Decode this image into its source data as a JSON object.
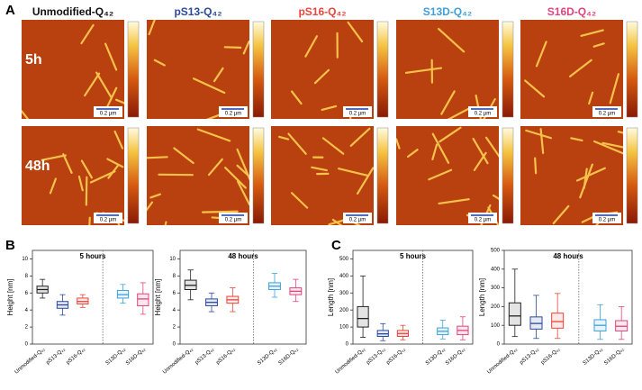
{
  "panel_labels": [
    "A",
    "B",
    "C"
  ],
  "afm": {
    "columns": [
      {
        "label": "Unmodified-Q₄₂",
        "color": "#111111"
      },
      {
        "label": "pS13-Q₄₂",
        "color": "#2b4a9a"
      },
      {
        "label": "pS16-Q₄₂",
        "color": "#e8453c"
      },
      {
        "label": "S13D-Q₄₂",
        "color": "#3ea1d8"
      },
      {
        "label": "S16D-Q₄₂",
        "color": "#e0447a"
      }
    ],
    "rows": [
      "5h",
      "48h"
    ],
    "scale_bar": "0.2 µm"
  },
  "chart_data": [
    {
      "type": "box",
      "title": "5 hours",
      "ylabel": "Height [nm]",
      "categories": [
        "Unmodified-Q₄₂",
        "pS13-Q₄₂",
        "pS16-Q₄₂",
        null,
        "S13D-Q₄₂",
        "S16D-Q₄₂"
      ],
      "colors": [
        "#222222",
        "#2b4a9a",
        "#e8453c",
        null,
        "#3ea1d8",
        "#e0447a"
      ],
      "boxes": [
        {
          "whislo": 5.4,
          "q1": 6.0,
          "median": 6.4,
          "q3": 6.8,
          "whishi": 7.6
        },
        {
          "whislo": 3.4,
          "q1": 4.2,
          "median": 4.6,
          "q3": 5.0,
          "whishi": 5.8
        },
        {
          "whislo": 4.3,
          "q1": 4.7,
          "median": 5.0,
          "q3": 5.4,
          "whishi": 5.8
        },
        null,
        {
          "whislo": 4.8,
          "q1": 5.4,
          "median": 5.8,
          "q3": 6.3,
          "whishi": 7.0
        },
        {
          "whislo": 3.5,
          "q1": 4.5,
          "median": 5.3,
          "q3": 5.9,
          "whishi": 7.2
        }
      ],
      "ylim": [
        0,
        11
      ],
      "yticks": [
        0,
        2,
        4,
        6,
        8,
        10
      ]
    },
    {
      "type": "box",
      "title": "48 hours",
      "ylabel": "Height [nm]",
      "categories": [
        "Unmodified-Q₄₂",
        "pS13-Q₄₂",
        "pS16-Q₄₂",
        null,
        "S13D-Q₄₂",
        "S16D-Q₄₂"
      ],
      "colors": [
        "#222222",
        "#2b4a9a",
        "#e8453c",
        null,
        "#3ea1d8",
        "#e0447a"
      ],
      "boxes": [
        {
          "whislo": 5.2,
          "q1": 6.4,
          "median": 6.9,
          "q3": 7.5,
          "whishi": 8.7
        },
        {
          "whislo": 3.8,
          "q1": 4.5,
          "median": 4.9,
          "q3": 5.3,
          "whishi": 6.0
        },
        {
          "whislo": 3.8,
          "q1": 4.8,
          "median": 5.2,
          "q3": 5.6,
          "whishi": 6.6
        },
        null,
        {
          "whislo": 5.5,
          "q1": 6.4,
          "median": 6.8,
          "q3": 7.2,
          "whishi": 8.3
        },
        {
          "whislo": 5.0,
          "q1": 5.8,
          "median": 6.2,
          "q3": 6.6,
          "whishi": 7.6
        }
      ],
      "ylim": [
        0,
        11
      ],
      "yticks": [
        0,
        2,
        4,
        6,
        8,
        10
      ]
    },
    {
      "type": "box",
      "title": "5 hours",
      "ylabel": "Length [nm]",
      "categories": [
        "Unmodified-Q₄₂",
        "pS13-Q₄₂",
        "pS16-Q₄₂",
        null,
        "S13D-Q₄₂",
        "S16D-Q₄₂"
      ],
      "colors": [
        "#222222",
        "#2b4a9a",
        "#e8453c",
        null,
        "#3ea1d8",
        "#e0447a"
      ],
      "boxes": [
        {
          "whislo": 40,
          "q1": 100,
          "median": 150,
          "q3": 220,
          "whishi": 400
        },
        {
          "whislo": 20,
          "q1": 45,
          "median": 60,
          "q3": 80,
          "whishi": 120
        },
        {
          "whislo": 25,
          "q1": 45,
          "median": 62,
          "q3": 80,
          "whishi": 110
        },
        null,
        {
          "whislo": 30,
          "q1": 55,
          "median": 75,
          "q3": 95,
          "whishi": 140
        },
        {
          "whislo": 25,
          "q1": 55,
          "median": 80,
          "q3": 105,
          "whishi": 160
        }
      ],
      "ylim": [
        0,
        550
      ],
      "yticks": [
        0,
        100,
        200,
        300,
        400,
        500
      ]
    },
    {
      "type": "box",
      "title": "48 hours",
      "ylabel": "Length [nm]",
      "categories": [
        "Unmodified-Q₄₂",
        "pS13-Q₄₂",
        "pS16-Q₄₂",
        null,
        "S13D-Q₄₂",
        "S16D-Q₄₂"
      ],
      "colors": [
        "#222222",
        "#2b4a9a",
        "#e8453c",
        null,
        "#3ea1d8",
        "#e0447a"
      ],
      "boxes": [
        {
          "whislo": 40,
          "q1": 100,
          "median": 150,
          "q3": 220,
          "whishi": 400
        },
        {
          "whislo": 30,
          "q1": 80,
          "median": 110,
          "q3": 145,
          "whishi": 260
        },
        {
          "whislo": 30,
          "q1": 85,
          "median": 120,
          "q3": 165,
          "whishi": 270
        },
        null,
        {
          "whislo": 25,
          "q1": 70,
          "median": 100,
          "q3": 130,
          "whishi": 210
        },
        {
          "whislo": 25,
          "q1": 70,
          "median": 95,
          "q3": 125,
          "whishi": 200
        }
      ],
      "ylim": [
        0,
        500
      ],
      "yticks": [
        0,
        100,
        200,
        300,
        400,
        500
      ]
    }
  ]
}
